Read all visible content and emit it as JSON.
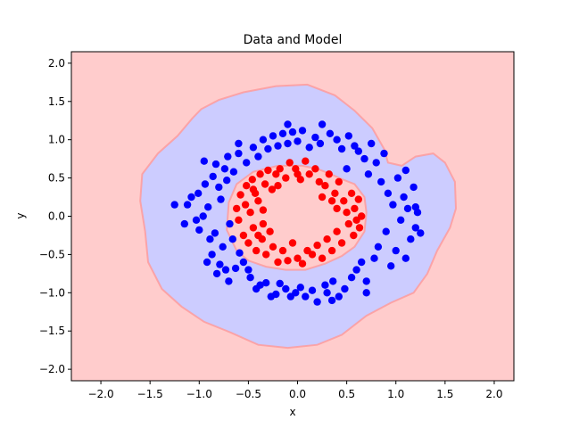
{
  "chart_data": {
    "type": "scatter",
    "title": "Data and Model",
    "xlabel": "x",
    "ylabel": "y",
    "xlim": [
      -2.3,
      2.2
    ],
    "ylim": [
      -2.15,
      2.15
    ],
    "xticks": [
      -2.0,
      -1.5,
      -1.0,
      -0.5,
      0.0,
      0.5,
      1.0,
      1.5,
      2.0
    ],
    "xtick_labels": [
      "−2.0",
      "−1.5",
      "−1.0",
      "−0.5",
      "0.0",
      "0.5",
      "1.0",
      "1.5",
      "2.0"
    ],
    "yticks": [
      -2.0,
      -1.5,
      -1.0,
      -0.5,
      0.0,
      0.5,
      1.0,
      1.5,
      2.0
    ],
    "ytick_labels": [
      "−2.0",
      "−1.5",
      "−1.0",
      "−0.5",
      "0.0",
      "0.5",
      "1.0",
      "1.5",
      "2.0"
    ],
    "grid": false,
    "background_color": "#ffcccc",
    "decision_region": {
      "class": "blue",
      "fill_color": "#ccccff",
      "outer_boundary": [
        [
          -1.07,
          1.28
        ],
        [
          -0.98,
          1.4
        ],
        [
          -0.8,
          1.52
        ],
        [
          -0.55,
          1.62
        ],
        [
          -0.22,
          1.7
        ],
        [
          0.1,
          1.72
        ],
        [
          0.38,
          1.58
        ],
        [
          0.58,
          1.38
        ],
        [
          0.76,
          1.15
        ],
        [
          0.88,
          0.88
        ],
        [
          0.92,
          0.7
        ],
        [
          1.06,
          0.66
        ],
        [
          1.2,
          0.78
        ],
        [
          1.38,
          0.82
        ],
        [
          1.5,
          0.7
        ],
        [
          1.6,
          0.45
        ],
        [
          1.61,
          0.1
        ],
        [
          1.55,
          -0.15
        ],
        [
          1.42,
          -0.45
        ],
        [
          1.32,
          -0.75
        ],
        [
          1.18,
          -1.0
        ],
        [
          0.95,
          -1.13
        ],
        [
          0.7,
          -1.3
        ],
        [
          0.45,
          -1.55
        ],
        [
          0.2,
          -1.68
        ],
        [
          -0.1,
          -1.72
        ],
        [
          -0.4,
          -1.68
        ],
        [
          -0.68,
          -1.52
        ],
        [
          -0.95,
          -1.38
        ],
        [
          -1.18,
          -1.18
        ],
        [
          -1.38,
          -0.95
        ],
        [
          -1.52,
          -0.6
        ],
        [
          -1.55,
          -0.2
        ],
        [
          -1.6,
          0.2
        ],
        [
          -1.58,
          0.55
        ],
        [
          -1.42,
          0.82
        ],
        [
          -1.22,
          1.05
        ]
      ],
      "inner_boundary": [
        [
          -0.7,
          0.18
        ],
        [
          -0.62,
          0.42
        ],
        [
          -0.45,
          0.58
        ],
        [
          -0.2,
          0.66
        ],
        [
          0.05,
          0.66
        ],
        [
          0.2,
          0.62
        ],
        [
          0.34,
          0.55
        ],
        [
          0.46,
          0.48
        ],
        [
          0.58,
          0.42
        ],
        [
          0.68,
          0.25
        ],
        [
          0.7,
          0.05
        ],
        [
          0.68,
          -0.2
        ],
        [
          0.58,
          -0.4
        ],
        [
          0.45,
          -0.52
        ],
        [
          0.28,
          -0.62
        ],
        [
          0.08,
          -0.7
        ],
        [
          -0.12,
          -0.7
        ],
        [
          -0.32,
          -0.66
        ],
        [
          -0.5,
          -0.58
        ],
        [
          -0.62,
          -0.45
        ],
        [
          -0.72,
          -0.18
        ]
      ]
    },
    "series": [
      {
        "color": "#0000ff",
        "points": [
          [
            -1.25,
            0.15
          ],
          [
            -1.12,
            0.15
          ],
          [
            -1.08,
            0.25
          ],
          [
            -1.03,
            -0.05
          ],
          [
            -1.01,
            0.3
          ],
          [
            -0.96,
            0.0
          ],
          [
            -0.94,
            0.42
          ],
          [
            -0.91,
            0.12
          ],
          [
            -0.89,
            -0.3
          ],
          [
            -0.87,
            -0.5
          ],
          [
            -0.86,
            0.52
          ],
          [
            -0.84,
            -0.22
          ],
          [
            -0.83,
            0.68
          ],
          [
            -0.8,
            0.38
          ],
          [
            -0.79,
            -0.63
          ],
          [
            -0.78,
            0.22
          ],
          [
            -0.76,
            -0.4
          ],
          [
            -0.74,
            0.62
          ],
          [
            -0.73,
            -0.7
          ],
          [
            -0.72,
            0.47
          ],
          [
            -0.71,
            0.78
          ],
          [
            -0.7,
            -0.85
          ],
          [
            -0.69,
            -0.1
          ],
          [
            -0.66,
            -0.3
          ],
          [
            -0.65,
            0.58
          ],
          [
            -0.63,
            -0.68
          ],
          [
            -0.6,
            0.82
          ],
          [
            -0.59,
            -0.48
          ],
          [
            -0.55,
            -0.6
          ],
          [
            -0.52,
            0.7
          ],
          [
            -0.5,
            -0.7
          ],
          [
            -0.48,
            -0.8
          ],
          [
            -0.45,
            0.9
          ],
          [
            -0.42,
            -0.95
          ],
          [
            -0.4,
            0.78
          ],
          [
            -0.38,
            -0.9
          ],
          [
            -0.35,
            1.0
          ],
          [
            -0.32,
            -0.87
          ],
          [
            -0.3,
            0.88
          ],
          [
            -0.27,
            -1.05
          ],
          [
            -0.25,
            1.05
          ],
          [
            -0.22,
            -1.02
          ],
          [
            -0.2,
            0.92
          ],
          [
            -0.18,
            -0.88
          ],
          [
            -0.15,
            1.08
          ],
          [
            -0.12,
            -0.95
          ],
          [
            -0.1,
            0.95
          ],
          [
            -0.07,
            -1.05
          ],
          [
            -0.05,
            1.1
          ],
          [
            -0.02,
            -1.0
          ],
          [
            0.0,
            0.98
          ],
          [
            0.03,
            -0.93
          ],
          [
            0.05,
            1.12
          ],
          [
            0.08,
            -1.05
          ],
          [
            0.12,
            0.9
          ],
          [
            0.15,
            -0.97
          ],
          [
            0.18,
            1.03
          ],
          [
            0.2,
            -1.12
          ],
          [
            0.23,
            0.95
          ],
          [
            0.25,
            1.2
          ],
          [
            0.28,
            -0.9
          ],
          [
            0.3,
            -1.0
          ],
          [
            0.33,
            1.08
          ],
          [
            0.36,
            -0.85
          ],
          [
            0.4,
            1.0
          ],
          [
            0.42,
            -1.05
          ],
          [
            0.45,
            0.88
          ],
          [
            0.48,
            -0.95
          ],
          [
            0.5,
            0.62
          ],
          [
            0.52,
            1.05
          ],
          [
            0.55,
            -0.8
          ],
          [
            0.58,
            0.92
          ],
          [
            0.6,
            -0.7
          ],
          [
            0.62,
            0.85
          ],
          [
            0.65,
            -0.6
          ],
          [
            0.68,
            0.75
          ],
          [
            0.7,
            -0.85
          ],
          [
            0.72,
            0.55
          ],
          [
            0.75,
            0.95
          ],
          [
            0.78,
            -0.55
          ],
          [
            0.8,
            0.7
          ],
          [
            0.82,
            -0.4
          ],
          [
            0.85,
            0.45
          ],
          [
            0.88,
            0.82
          ],
          [
            0.9,
            -0.2
          ],
          [
            0.92,
            0.3
          ],
          [
            0.95,
            -0.65
          ],
          [
            0.97,
            0.15
          ],
          [
            1.0,
            -0.45
          ],
          [
            1.02,
            0.5
          ],
          [
            1.05,
            -0.05
          ],
          [
            1.08,
            0.25
          ],
          [
            1.1,
            -0.55
          ],
          [
            1.12,
            0.1
          ],
          [
            1.15,
            -0.3
          ],
          [
            1.18,
            0.38
          ],
          [
            1.2,
            -0.15
          ],
          [
            1.22,
            0.05
          ],
          [
            1.25,
            -0.22
          ],
          [
            1.2,
            0.12
          ],
          [
            1.1,
            0.6
          ],
          [
            -0.95,
            0.72
          ],
          [
            -1.0,
            -0.18
          ],
          [
            -0.82,
            -0.75
          ],
          [
            -0.6,
            0.95
          ],
          [
            0.7,
            -1.0
          ],
          [
            0.35,
            -1.1
          ],
          [
            -0.1,
            1.2
          ],
          [
            -1.15,
            -0.1
          ],
          [
            -0.92,
            -0.6
          ]
        ]
      },
      {
        "color": "#ff0000",
        "points": [
          [
            -0.62,
            0.1
          ],
          [
            -0.6,
            -0.05
          ],
          [
            -0.58,
            0.28
          ],
          [
            -0.55,
            -0.25
          ],
          [
            -0.53,
            0.15
          ],
          [
            -0.52,
            0.4
          ],
          [
            -0.5,
            -0.35
          ],
          [
            -0.48,
            0.05
          ],
          [
            -0.46,
            0.48
          ],
          [
            -0.45,
            -0.15
          ],
          [
            -0.43,
            0.3
          ],
          [
            -0.42,
            -0.45
          ],
          [
            -0.4,
            0.2
          ],
          [
            -0.38,
            0.55
          ],
          [
            -0.36,
            -0.3
          ],
          [
            -0.35,
            0.08
          ],
          [
            -0.33,
            0.42
          ],
          [
            -0.32,
            -0.5
          ],
          [
            -0.3,
            0.6
          ],
          [
            -0.28,
            -0.2
          ],
          [
            -0.26,
            0.35
          ],
          [
            -0.25,
            -0.4
          ],
          [
            -0.22,
            0.55
          ],
          [
            -0.2,
            -0.6
          ],
          [
            -0.18,
            0.62
          ],
          [
            -0.15,
            -0.45
          ],
          [
            -0.12,
            0.5
          ],
          [
            -0.1,
            -0.58
          ],
          [
            -0.08,
            0.7
          ],
          [
            -0.05,
            -0.35
          ],
          [
            -0.02,
            0.62
          ],
          [
            0.0,
            -0.55
          ],
          [
            0.03,
            0.48
          ],
          [
            0.05,
            -0.62
          ],
          [
            0.08,
            0.72
          ],
          [
            0.1,
            -0.45
          ],
          [
            0.12,
            0.55
          ],
          [
            0.15,
            -0.5
          ],
          [
            0.18,
            0.62
          ],
          [
            0.2,
            -0.38
          ],
          [
            0.22,
            0.45
          ],
          [
            0.25,
            -0.55
          ],
          [
            0.28,
            0.4
          ],
          [
            0.3,
            -0.3
          ],
          [
            0.32,
            0.55
          ],
          [
            0.35,
            -0.45
          ],
          [
            0.38,
            0.3
          ],
          [
            0.4,
            -0.2
          ],
          [
            0.42,
            0.45
          ],
          [
            0.45,
            -0.35
          ],
          [
            0.47,
            0.2
          ],
          [
            0.5,
            0.05
          ],
          [
            0.52,
            -0.1
          ],
          [
            0.55,
            0.3
          ],
          [
            0.57,
            -0.25
          ],
          [
            0.58,
            0.1
          ],
          [
            0.6,
            -0.05
          ],
          [
            0.62,
            0.22
          ],
          [
            0.63,
            -0.15
          ],
          [
            0.65,
            0.0
          ],
          [
            0.4,
            0.1
          ],
          [
            0.35,
            0.2
          ],
          [
            -0.35,
            -0.1
          ],
          [
            -0.4,
            -0.25
          ],
          [
            0.0,
            0.55
          ],
          [
            -0.2,
            0.4
          ],
          [
            0.25,
            0.25
          ],
          [
            -0.45,
            0.35
          ]
        ]
      }
    ]
  }
}
